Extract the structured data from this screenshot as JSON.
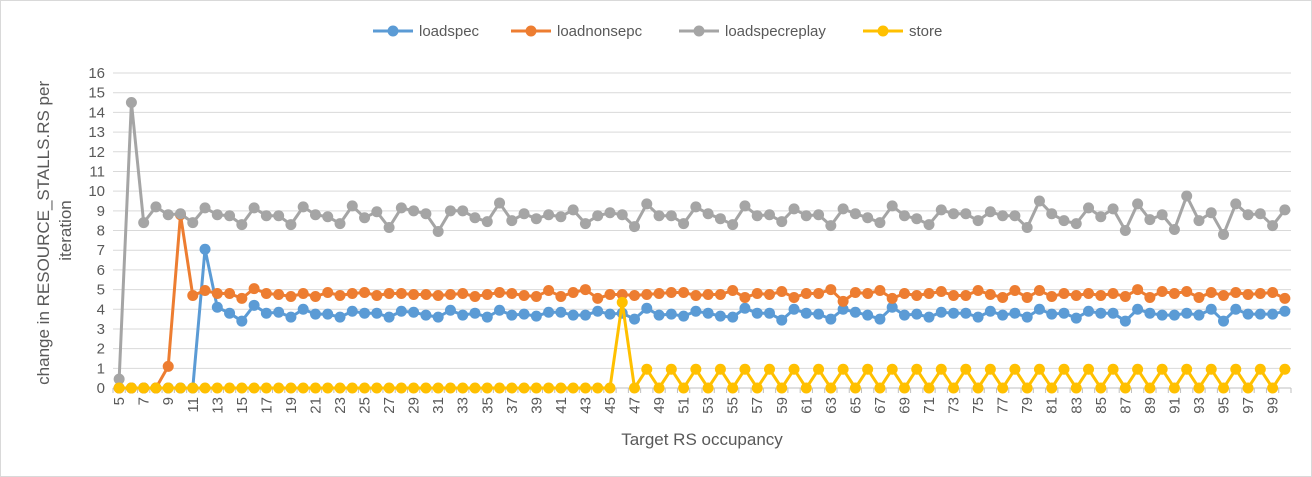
{
  "chart_data": {
    "type": "line",
    "title": "",
    "xlabel": "Target RS occupancy",
    "ylabel": [
      "change in RESOURCE_STALLS.RS per",
      "iteration"
    ],
    "ylim": [
      0,
      16
    ],
    "yticks": [
      0,
      1,
      2,
      3,
      4,
      5,
      6,
      7,
      8,
      9,
      10,
      11,
      12,
      13,
      14,
      15,
      16
    ],
    "grid": true,
    "legend": "top",
    "x": [
      5,
      6,
      7,
      8,
      9,
      10,
      11,
      12,
      13,
      14,
      15,
      16,
      17,
      18,
      19,
      20,
      21,
      22,
      23,
      24,
      25,
      26,
      27,
      28,
      29,
      30,
      31,
      32,
      33,
      34,
      35,
      36,
      37,
      38,
      39,
      40,
      41,
      42,
      43,
      44,
      45,
      46,
      47,
      48,
      49,
      50,
      51,
      52,
      53,
      54,
      55,
      56,
      57,
      58,
      59,
      60,
      61,
      62,
      63,
      64,
      65,
      66,
      67,
      68,
      69,
      70,
      71,
      72,
      73,
      74,
      75,
      76,
      77,
      78,
      79,
      80,
      81,
      82,
      83,
      84,
      85,
      86,
      87,
      88,
      89,
      90,
      91,
      92,
      93,
      94,
      95,
      96,
      97,
      98,
      99,
      100
    ],
    "xticklabels": [
      "5",
      "7",
      "9",
      "11",
      "13",
      "15",
      "17",
      "19",
      "21",
      "23",
      "25",
      "27",
      "29",
      "31",
      "33",
      "35",
      "37",
      "39",
      "41",
      "43",
      "45",
      "47",
      "49",
      "51",
      "53",
      "55",
      "57",
      "59",
      "61",
      "63",
      "65",
      "67",
      "69",
      "71",
      "73",
      "75",
      "77",
      "79",
      "81",
      "83",
      "85",
      "87",
      "89",
      "91",
      "93",
      "95",
      "97",
      "99"
    ],
    "series": [
      {
        "name": "loadspec",
        "color": "#5b9bd5",
        "values": [
          0,
          0,
          0,
          0,
          0,
          0,
          0,
          7.05,
          4.1,
          3.8,
          3.4,
          4.2,
          3.8,
          3.85,
          3.6,
          4.0,
          3.75,
          3.75,
          3.6,
          3.9,
          3.8,
          3.8,
          3.6,
          3.9,
          3.85,
          3.7,
          3.6,
          3.95,
          3.7,
          3.8,
          3.6,
          3.95,
          3.7,
          3.75,
          3.65,
          3.85,
          3.85,
          3.7,
          3.7,
          3.9,
          3.75,
          3.8,
          3.5,
          4.05,
          3.7,
          3.75,
          3.65,
          3.9,
          3.8,
          3.65,
          3.6,
          4.05,
          3.8,
          3.8,
          3.45,
          4.0,
          3.8,
          3.75,
          3.5,
          4.0,
          3.85,
          3.7,
          3.5,
          4.1,
          3.7,
          3.75,
          3.6,
          3.85,
          3.8,
          3.8,
          3.6,
          3.9,
          3.7,
          3.8,
          3.6,
          4.0,
          3.75,
          3.8,
          3.55,
          3.9,
          3.8,
          3.8,
          3.4,
          4.0,
          3.8,
          3.7,
          3.7,
          3.8,
          3.7,
          4.0,
          3.4,
          4.0,
          3.75,
          3.75,
          3.75,
          3.9
        ]
      },
      {
        "name": "loadnonsepc",
        "color": "#ed7d31",
        "values": [
          0,
          0,
          0,
          0,
          1.1,
          8.8,
          4.7,
          4.95,
          4.8,
          4.8,
          4.55,
          5.05,
          4.8,
          4.75,
          4.65,
          4.8,
          4.65,
          4.85,
          4.7,
          4.8,
          4.85,
          4.7,
          4.8,
          4.8,
          4.75,
          4.75,
          4.7,
          4.75,
          4.8,
          4.65,
          4.75,
          4.85,
          4.8,
          4.7,
          4.65,
          4.95,
          4.65,
          4.85,
          5.0,
          4.55,
          4.75,
          4.75,
          4.7,
          4.75,
          4.8,
          4.85,
          4.85,
          4.7,
          4.75,
          4.75,
          4.95,
          4.6,
          4.8,
          4.75,
          4.9,
          4.6,
          4.8,
          4.8,
          5.0,
          4.4,
          4.85,
          4.8,
          4.95,
          4.55,
          4.8,
          4.7,
          4.8,
          4.9,
          4.7,
          4.7,
          4.95,
          4.75,
          4.6,
          4.95,
          4.6,
          4.95,
          4.65,
          4.8,
          4.7,
          4.8,
          4.7,
          4.8,
          4.65,
          5.0,
          4.6,
          4.9,
          4.8,
          4.9,
          4.6,
          4.85,
          4.7,
          4.85,
          4.75,
          4.8,
          4.85,
          4.55
        ]
      },
      {
        "name": "loadspecreplay",
        "color": "#a5a5a5",
        "values": [
          0.45,
          14.5,
          8.4,
          9.2,
          8.8,
          8.85,
          8.4,
          9.15,
          8.8,
          8.75,
          8.3,
          9.15,
          8.75,
          8.75,
          8.3,
          9.2,
          8.8,
          8.7,
          8.35,
          9.25,
          8.65,
          8.95,
          8.15,
          9.15,
          9.0,
          8.85,
          7.95,
          9.0,
          9.0,
          8.65,
          8.45,
          9.4,
          8.5,
          8.85,
          8.6,
          8.8,
          8.7,
          9.05,
          8.35,
          8.75,
          8.9,
          8.8,
          8.2,
          9.35,
          8.75,
          8.75,
          8.35,
          9.2,
          8.85,
          8.6,
          8.3,
          9.25,
          8.75,
          8.8,
          8.45,
          9.1,
          8.75,
          8.8,
          8.25,
          9.1,
          8.85,
          8.65,
          8.4,
          9.25,
          8.75,
          8.6,
          8.3,
          9.05,
          8.85,
          8.85,
          8.5,
          8.95,
          8.75,
          8.75,
          8.15,
          9.5,
          8.85,
          8.5,
          8.35,
          9.15,
          8.7,
          9.1,
          8.0,
          9.35,
          8.55,
          8.8,
          8.05,
          9.75,
          8.5,
          8.9,
          7.8,
          9.35,
          8.8,
          8.85,
          8.25,
          9.05
        ]
      },
      {
        "name": "store",
        "color": "#ffc000",
        "values": [
          0,
          0,
          0,
          0,
          0,
          0,
          0,
          0,
          0,
          0,
          0,
          0,
          0,
          0,
          0,
          0,
          0,
          0,
          0,
          0,
          0,
          0,
          0,
          0,
          0,
          0,
          0,
          0,
          0,
          0,
          0,
          0,
          0,
          0,
          0,
          0,
          0,
          0,
          0,
          0,
          0,
          4.35,
          0,
          0.95,
          0,
          0.95,
          0,
          0.95,
          0,
          0.95,
          0,
          0.95,
          0,
          0.95,
          0,
          0.95,
          0,
          0.95,
          0,
          0.95,
          0,
          0.95,
          0,
          0.95,
          0,
          0.95,
          0,
          0.95,
          0,
          0.95,
          0,
          0.95,
          0,
          0.95,
          0,
          0.95,
          0,
          0.95,
          0,
          0.95,
          0,
          0.95,
          0,
          0.95,
          0,
          0.95,
          0,
          0.95,
          0,
          0.95,
          0,
          0.95,
          0,
          0.95,
          0,
          0.95
        ]
      }
    ]
  }
}
